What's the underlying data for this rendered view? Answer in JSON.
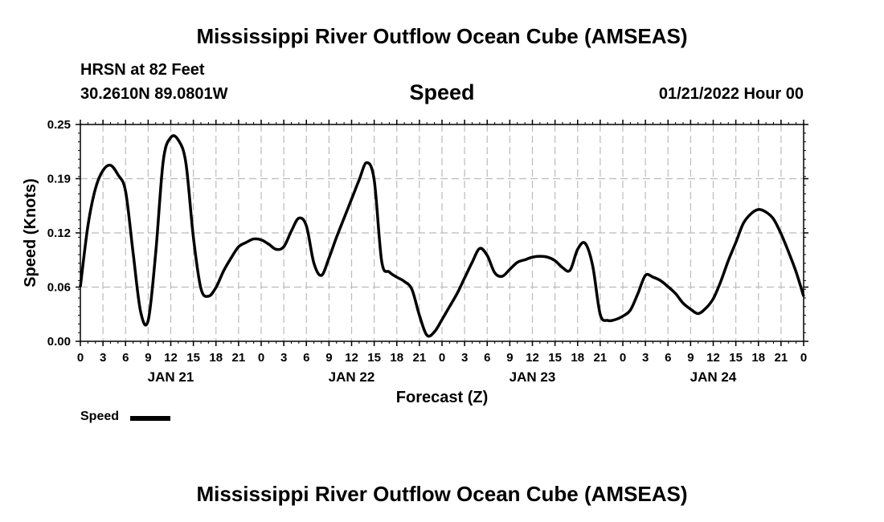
{
  "header": {
    "title": "Mississippi River Outflow Ocean Cube (AMSEAS)",
    "station": "HRSN at 82 Feet",
    "coords": "30.2610N  89.0801W",
    "panel_title": "Speed",
    "run_time": "01/21/2022 Hour 00"
  },
  "footer": {
    "title": "Mississippi River Outflow Ocean Cube (AMSEAS)"
  },
  "legend": {
    "label": "Speed"
  },
  "chart_data": {
    "type": "line",
    "title": "Speed",
    "xlabel": "Forecast (Z)",
    "ylabel": "Speed (Knots)",
    "xlim": [
      0,
      96
    ],
    "ylim": [
      0,
      0.25
    ],
    "y_ticks": [
      "0.00",
      "0.06",
      "0.12",
      "0.19",
      "0.25"
    ],
    "y_tick_values": [
      0,
      0.0625,
      0.125,
      0.1875,
      0.25
    ],
    "x_tick_labels": [
      "0",
      "3",
      "6",
      "9",
      "12",
      "15",
      "18",
      "21",
      "0",
      "3",
      "6",
      "9",
      "12",
      "15",
      "18",
      "21",
      "0",
      "3",
      "6",
      "9",
      "12",
      "15",
      "18",
      "21",
      "0",
      "3",
      "6",
      "9",
      "12",
      "15",
      "18",
      "21",
      "0"
    ],
    "day_labels": [
      {
        "label": "JAN 21",
        "x": 12
      },
      {
        "label": "JAN 22",
        "x": 36
      },
      {
        "label": "JAN 23",
        "x": 60
      },
      {
        "label": "JAN 24",
        "x": 84
      }
    ],
    "grid": true,
    "color": "#000000",
    "series": [
      {
        "name": "Speed",
        "x": [
          0,
          1,
          2,
          3,
          4,
          5,
          6,
          7,
          8,
          9,
          10,
          11,
          12,
          13,
          14,
          15,
          16,
          17,
          18,
          19,
          20,
          21,
          22,
          23,
          24,
          25,
          26,
          27,
          28,
          29,
          30,
          31,
          32,
          33,
          34,
          35,
          36,
          37,
          38,
          39,
          40,
          41,
          42,
          43,
          44,
          45,
          46,
          47,
          48,
          49,
          50,
          51,
          52,
          53,
          54,
          55,
          56,
          57,
          58,
          59,
          60,
          61,
          62,
          63,
          64,
          65,
          66,
          67,
          68,
          69,
          70,
          71,
          72,
          73,
          74,
          75,
          76,
          77,
          78,
          79,
          80,
          81,
          82,
          83,
          84,
          85,
          86,
          87,
          88,
          89,
          90,
          91,
          92,
          93,
          94,
          95,
          96
        ],
        "values": [
          0.063,
          0.133,
          0.176,
          0.197,
          0.203,
          0.192,
          0.173,
          0.102,
          0.034,
          0.024,
          0.102,
          0.208,
          0.235,
          0.232,
          0.206,
          0.12,
          0.061,
          0.052,
          0.062,
          0.081,
          0.096,
          0.109,
          0.114,
          0.118,
          0.117,
          0.112,
          0.106,
          0.109,
          0.127,
          0.142,
          0.133,
          0.09,
          0.076,
          0.096,
          0.12,
          0.142,
          0.164,
          0.186,
          0.206,
          0.186,
          0.092,
          0.08,
          0.074,
          0.069,
          0.06,
          0.03,
          0.007,
          0.011,
          0.025,
          0.04,
          0.055,
          0.073,
          0.091,
          0.107,
          0.099,
          0.079,
          0.075,
          0.083,
          0.091,
          0.094,
          0.097,
          0.098,
          0.097,
          0.093,
          0.085,
          0.082,
          0.106,
          0.113,
          0.087,
          0.031,
          0.024,
          0.025,
          0.029,
          0.036,
          0.055,
          0.076,
          0.074,
          0.07,
          0.063,
          0.055,
          0.044,
          0.037,
          0.032,
          0.038,
          0.049,
          0.069,
          0.093,
          0.114,
          0.136,
          0.147,
          0.152,
          0.149,
          0.141,
          0.124,
          0.103,
          0.08,
          0.052
        ]
      }
    ]
  }
}
